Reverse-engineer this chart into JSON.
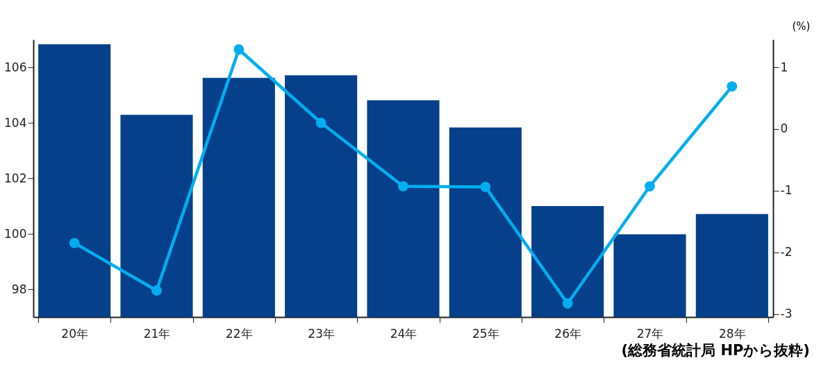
{
  "chart_data": {
    "type": "bar",
    "categories": [
      "20年",
      "21年",
      "22年",
      "23年",
      "24年",
      "25年",
      "26年",
      "27年",
      "28年"
    ],
    "series": [
      {
        "color": "#06408a",
        "values": [
          106.83,
          104.29,
          105.62,
          105.71,
          104.81,
          103.83,
          101.0,
          99.98,
          100.71
        ]
      },
      {
        "type": "line",
        "axis": "y2",
        "color": "#00aeef",
        "marker": "circle",
        "values": [
          -1.85,
          -2.62,
          1.29,
          0.1,
          -0.93,
          -0.94,
          -2.83,
          -0.93,
          0.69
        ]
      }
    ],
    "ylim": [
      97,
      107
    ],
    "yticks": [
      98,
      100,
      102,
      104,
      106
    ],
    "y2lim": [
      -3.05,
      1.45
    ],
    "y2ticks": [
      -3,
      -2,
      -1,
      0,
      1
    ],
    "y2label": "(%)",
    "annotations": [
      "(総務省統計局 HPから抜粋)"
    ]
  }
}
